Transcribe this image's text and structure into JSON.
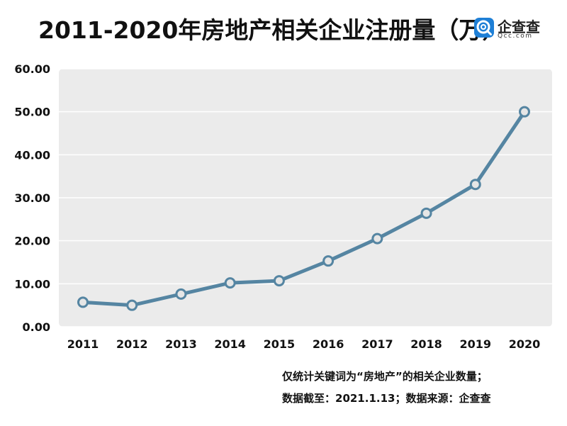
{
  "title": "2011-2020年房地产相关企业注册量（万）",
  "logo": {
    "name": "企查查",
    "domain": "Qcc.com",
    "icon": "qcc-magnifier-icon",
    "color": "#1e7fd6"
  },
  "notes": {
    "line1": "仅统计关键词为“房地产”的相关企业数量；",
    "line2": "数据截至：2021.1.13；数据来源：企查查"
  },
  "colors": {
    "plot_bg": "#ebebeb",
    "line": "#5585a2",
    "marker_fill": "#e6e6e6",
    "marker_stroke": "#5585a2"
  },
  "chart_data": {
    "type": "line",
    "title": "2011-2020年房地产相关企业注册量（万）",
    "xlabel": "",
    "ylabel": "",
    "categories": [
      "2011",
      "2012",
      "2013",
      "2014",
      "2015",
      "2016",
      "2017",
      "2018",
      "2019",
      "2020"
    ],
    "values": [
      5.7,
      5.0,
      7.6,
      10.2,
      10.7,
      15.3,
      20.5,
      26.4,
      33.1,
      50.0
    ],
    "ylim": [
      0,
      60
    ],
    "yticks": [
      "0.00",
      "10.00",
      "20.00",
      "30.00",
      "40.00",
      "50.00",
      "60.00"
    ],
    "grid": true,
    "legend": "none"
  }
}
